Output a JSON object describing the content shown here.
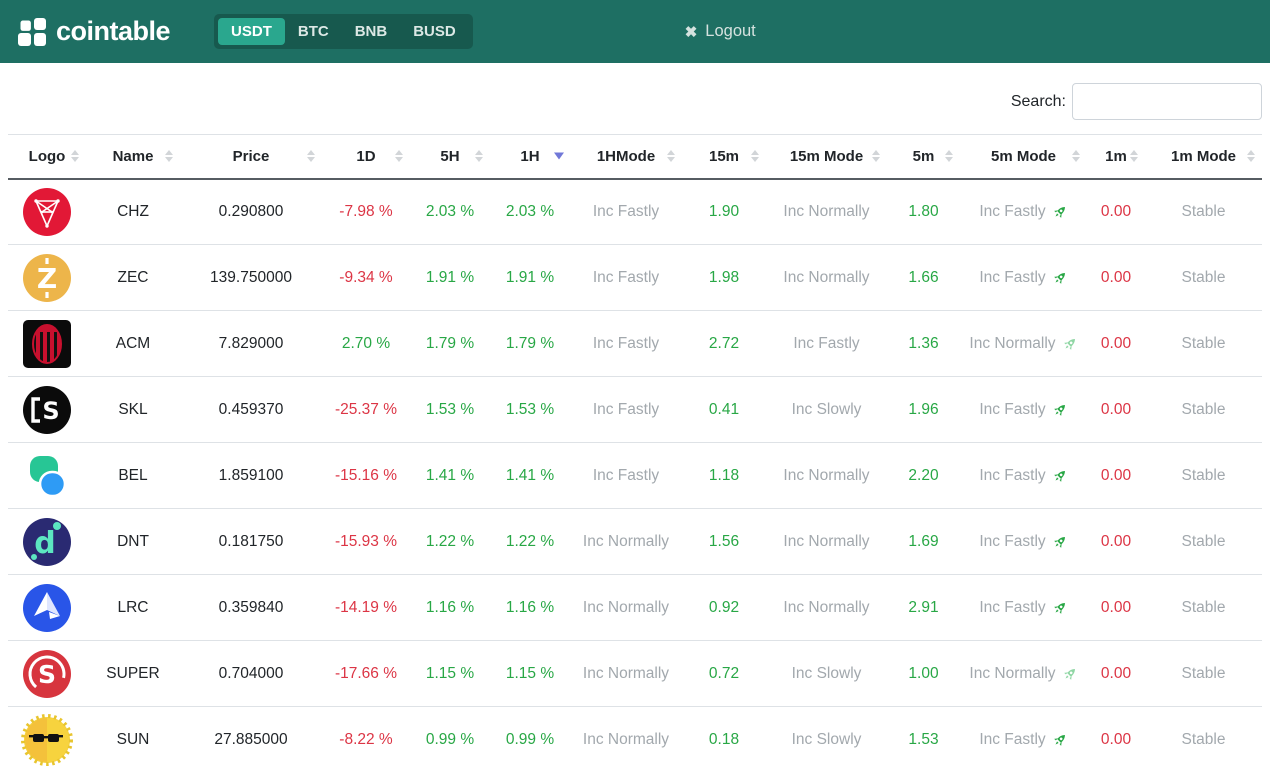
{
  "header": {
    "brand": "cointable",
    "tabs": [
      {
        "label": "USDT",
        "active": true
      },
      {
        "label": "BTC",
        "active": false
      },
      {
        "label": "BNB",
        "active": false
      },
      {
        "label": "BUSD",
        "active": false
      }
    ],
    "logout_icon": "✖",
    "logout_label": "Logout"
  },
  "search": {
    "label": "Search:",
    "value": ""
  },
  "colors": {
    "header_teal": "#1e6f63",
    "tab_container_teal": "#17594e",
    "tab_active_teal": "#2aa78e",
    "positive_green": "#28a745",
    "negative_red": "#dc3545",
    "muted_gray": "#a2a8ad",
    "sort_arrow_active": "#7178d8"
  },
  "table": {
    "columns": [
      {
        "id": "logo",
        "label": "Logo",
        "sort": "both"
      },
      {
        "id": "name",
        "label": "Name",
        "sort": "both"
      },
      {
        "id": "price",
        "label": "Price",
        "sort": "both"
      },
      {
        "id": "d1",
        "label": "1D",
        "sort": "both"
      },
      {
        "id": "h5",
        "label": "5H",
        "sort": "both"
      },
      {
        "id": "h1",
        "label": "1H",
        "sort": "desc"
      },
      {
        "id": "h1mode",
        "label": "1HMode",
        "sort": "both"
      },
      {
        "id": "m15",
        "label": "15m",
        "sort": "both"
      },
      {
        "id": "m15mode",
        "label": "15m Mode",
        "sort": "both"
      },
      {
        "id": "m5",
        "label": "5m",
        "sort": "both"
      },
      {
        "id": "m5mode",
        "label": "5m Mode",
        "sort": "both"
      },
      {
        "id": "m1",
        "label": "1m",
        "sort": "both"
      },
      {
        "id": "m1mode",
        "label": "1m Mode",
        "sort": "both"
      }
    ],
    "rows": [
      {
        "name": "CHZ",
        "logo": "chiliz-logo",
        "price": "0.290800",
        "d1": "-7.98 %",
        "h5": "2.03 %",
        "h1": "2.03 %",
        "h1mode": "Inc Fastly",
        "m15": "1.90",
        "m15mode": "Inc Normally",
        "m5": "1.80",
        "m5mode": "Inc Fastly",
        "m5_rocket": "rocket-icon-green",
        "m1": "0.00",
        "m1mode": "Stable"
      },
      {
        "name": "ZEC",
        "logo": "zcash-logo",
        "price": "139.750000",
        "d1": "-9.34 %",
        "h5": "1.91 %",
        "h1": "1.91 %",
        "h1mode": "Inc Fastly",
        "m15": "1.98",
        "m15mode": "Inc Normally",
        "m5": "1.66",
        "m5mode": "Inc Fastly",
        "m5_rocket": "rocket-icon-green",
        "m1": "0.00",
        "m1mode": "Stable"
      },
      {
        "name": "ACM",
        "logo": "acmilan-logo",
        "price": "7.829000",
        "d1": "2.70 %",
        "h5": "1.79 %",
        "h1": "1.79 %",
        "h1mode": "Inc Fastly",
        "m15": "2.72",
        "m15mode": "Inc Fastly",
        "m5": "1.36",
        "m5mode": "Inc Normally",
        "m5_rocket": "rocket-icon-light-green",
        "m1": "0.00",
        "m1mode": "Stable"
      },
      {
        "name": "SKL",
        "logo": "skale-logo",
        "price": "0.459370",
        "d1": "-25.37 %",
        "h5": "1.53 %",
        "h1": "1.53 %",
        "h1mode": "Inc Fastly",
        "m15": "0.41",
        "m15mode": "Inc Slowly",
        "m5": "1.96",
        "m5mode": "Inc Fastly",
        "m5_rocket": "rocket-icon-green",
        "m1": "0.00",
        "m1mode": "Stable"
      },
      {
        "name": "BEL",
        "logo": "bella-logo",
        "price": "1.859100",
        "d1": "-15.16 %",
        "h5": "1.41 %",
        "h1": "1.41 %",
        "h1mode": "Inc Fastly",
        "m15": "1.18",
        "m15mode": "Inc Normally",
        "m5": "2.20",
        "m5mode": "Inc Fastly",
        "m5_rocket": "rocket-icon-green",
        "m1": "0.00",
        "m1mode": "Stable"
      },
      {
        "name": "DNT",
        "logo": "district0x-logo",
        "price": "0.181750",
        "d1": "-15.93 %",
        "h5": "1.22 %",
        "h1": "1.22 %",
        "h1mode": "Inc Normally",
        "m15": "1.56",
        "m15mode": "Inc Normally",
        "m5": "1.69",
        "m5mode": "Inc Fastly",
        "m5_rocket": "rocket-icon-green",
        "m1": "0.00",
        "m1mode": "Stable"
      },
      {
        "name": "LRC",
        "logo": "loopring-logo",
        "price": "0.359840",
        "d1": "-14.19 %",
        "h5": "1.16 %",
        "h1": "1.16 %",
        "h1mode": "Inc Normally",
        "m15": "0.92",
        "m15mode": "Inc Normally",
        "m5": "2.91",
        "m5mode": "Inc Fastly",
        "m5_rocket": "rocket-icon-green",
        "m1": "0.00",
        "m1mode": "Stable"
      },
      {
        "name": "SUPER",
        "logo": "superfarm-logo",
        "price": "0.704000",
        "d1": "-17.66 %",
        "h5": "1.15 %",
        "h1": "1.15 %",
        "h1mode": "Inc Normally",
        "m15": "0.72",
        "m15mode": "Inc Slowly",
        "m5": "1.00",
        "m5mode": "Inc Normally",
        "m5_rocket": "rocket-icon-light-green",
        "m1": "0.00",
        "m1mode": "Stable"
      },
      {
        "name": "SUN",
        "logo": "sun-logo",
        "price": "27.885000",
        "d1": "-8.22 %",
        "h5": "0.99 %",
        "h1": "0.99 %",
        "h1mode": "Inc Normally",
        "m15": "0.18",
        "m15mode": "Inc Slowly",
        "m5": "1.53",
        "m5mode": "Inc Fastly",
        "m5_rocket": "rocket-icon-green",
        "m1": "0.00",
        "m1mode": "Stable"
      }
    ]
  }
}
